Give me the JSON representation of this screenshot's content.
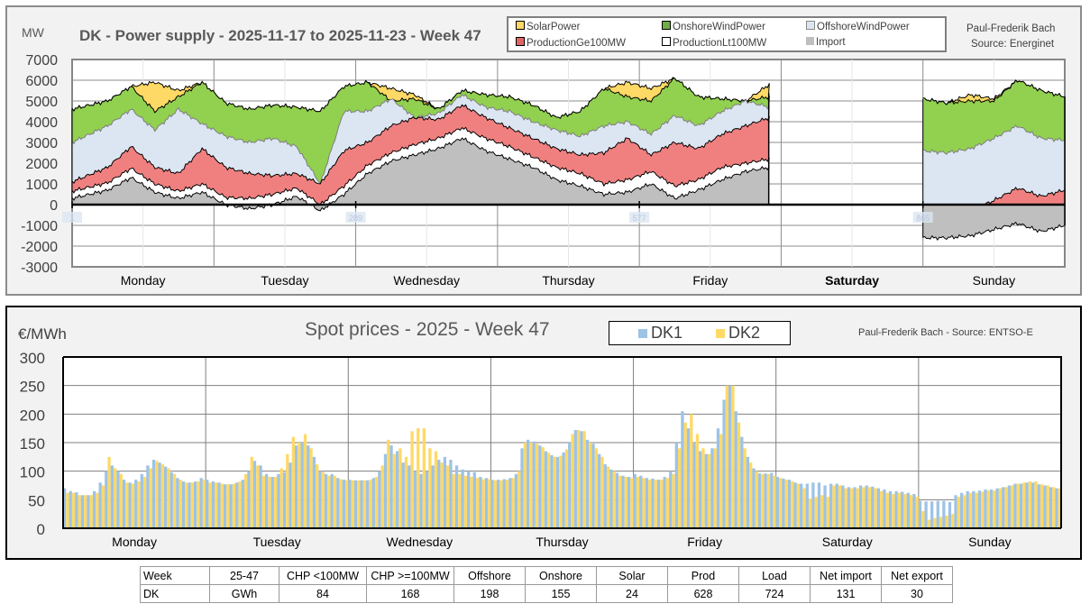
{
  "chart_data": [
    {
      "type": "area",
      "title": "DK - Power supply - 2025-11-17 to 2025-11-23 - Week 47",
      "ylabel": "MW",
      "credit": [
        "Paul-Frederik Bach",
        "Source: Energinet"
      ],
      "ylim": [
        -3000,
        7000
      ],
      "yticks": [
        7000,
        6000,
        5000,
        4000,
        3000,
        2000,
        1000,
        0,
        -1000,
        -2000,
        -3000
      ],
      "xlim": [
        1,
        2016
      ],
      "days": [
        "Monday",
        "Tuesday",
        "Wednesday",
        "Thursday",
        "Friday",
        "Saturday",
        "Sunday"
      ],
      "index_labels": [
        "1",
        "289",
        "577",
        "865",
        "1153",
        "1441",
        "1729"
      ],
      "grid": true,
      "legend_position": "top",
      "legend": [
        "SolarPower",
        "OnshoreWindPower",
        "OffshoreWindPower",
        "ProductionGe100MW",
        "ProductionLt100MW",
        "Import"
      ],
      "colors": {
        "SolarPower": "#ffd966",
        "OnshoreWindPower": "#92d050",
        "OffshoreWindPower": "#dce6f2",
        "ProductionGe100MW": "#f08080",
        "ProductionLt100MW": "#ffffff",
        "Import": "#bfbfbf"
      },
      "x_hours": [
        0,
        6,
        10,
        14,
        18,
        22,
        26,
        30,
        34,
        38,
        42,
        46,
        50,
        54,
        58,
        62,
        66,
        70,
        74,
        78,
        82,
        86,
        90,
        94,
        98,
        102,
        106,
        110,
        114,
        118,
        122,
        126,
        130,
        134,
        138,
        142,
        146,
        150,
        154,
        158,
        162,
        166,
        168,
        144,
        148,
        152,
        156,
        160,
        164,
        168
      ],
      "series_note": "Stacked boundaries in MW. Data gap from Friday ~21:00 through Saturday; Sunday resumes.",
      "segments": [
        {
          "name": "Mon-Fri",
          "hours": [
            0,
            6,
            10,
            14,
            18,
            22,
            26,
            30,
            34,
            38,
            42,
            46,
            50,
            54,
            58,
            62,
            66,
            70,
            74,
            78,
            82,
            86,
            90,
            94,
            98,
            102,
            106,
            110,
            114,
            118,
            117.9
          ],
          "import": [
            300,
            700,
            1300,
            600,
            300,
            600,
            0,
            -200,
            0,
            400,
            -300,
            500,
            1500,
            2100,
            2400,
            2700,
            3200,
            2600,
            2200,
            1800,
            1200,
            900,
            500,
            600,
            1000,
            300,
            700,
            1200,
            1600,
            1800,
            1800
          ],
          "lt100": [
            650,
            1050,
            1750,
            1000,
            650,
            1000,
            350,
            300,
            500,
            800,
            0,
            900,
            1900,
            2500,
            2900,
            3200,
            3700,
            3200,
            2800,
            2300,
            1800,
            1500,
            1000,
            1200,
            1600,
            900,
            1200,
            1800,
            2000,
            2200,
            2100
          ],
          "ge100": [
            1100,
            1800,
            2800,
            1800,
            1500,
            2700,
            1800,
            1500,
            1400,
            1500,
            1000,
            2600,
            3000,
            3800,
            4200,
            4100,
            4800,
            4200,
            3700,
            3200,
            2700,
            2400,
            2500,
            3200,
            2400,
            3000,
            2700,
            3400,
            3800,
            4200,
            4000
          ],
          "offshore": [
            3000,
            3800,
            4600,
            3600,
            4600,
            3900,
            3300,
            3000,
            3200,
            2800,
            1000,
            4500,
            4500,
            5100,
            4200,
            4400,
            5300,
            4700,
            4500,
            4000,
            3600,
            3300,
            3800,
            4000,
            3400,
            4300,
            3800,
            4500,
            5000,
            4700,
            4600
          ],
          "onshore": [
            4600,
            5000,
            5700,
            4500,
            5200,
            5900,
            4900,
            4600,
            4800,
            4700,
            4500,
            5700,
            5900,
            5000,
            5100,
            4600,
            5500,
            5300,
            5200,
            4800,
            4200,
            4500,
            5600,
            5200,
            5000,
            6100,
            5200,
            5100,
            5000,
            5200,
            4500
          ],
          "solar": [
            4600,
            5000,
            5700,
            5900,
            5500,
            5900,
            4900,
            4600,
            4800,
            4700,
            4500,
            5700,
            5900,
            5600,
            5300,
            4600,
            5500,
            5300,
            5200,
            4800,
            4200,
            4500,
            5600,
            5900,
            5600,
            6100,
            5200,
            5100,
            5000,
            5800,
            5400
          ]
        },
        {
          "name": "Sun",
          "hours": [
            144,
            148,
            152,
            156,
            160,
            164,
            168
          ],
          "import": [
            -1600,
            -1600,
            -1500,
            -1200,
            -900,
            -1300,
            -1000
          ],
          "lt100": [
            -1200,
            -1200,
            -1100,
            -900,
            -400,
            -1000,
            -600
          ],
          "ge100": [
            -500,
            -600,
            -300,
            200,
            800,
            400,
            700
          ],
          "offshore": [
            2600,
            2500,
            2700,
            3200,
            3800,
            3200,
            3100
          ],
          "onshore": [
            5100,
            4900,
            5000,
            5000,
            6000,
            5500,
            5200
          ],
          "solar": [
            5100,
            4900,
            5300,
            5100,
            6000,
            5500,
            5200
          ]
        }
      ]
    },
    {
      "type": "bar",
      "title": "Spot prices - 2025 - Week 47",
      "ylabel": "€/MWh",
      "credit": "Paul-Frederik Bach - Source: ENTSO-E",
      "ylim": [
        0,
        300
      ],
      "yticks": [
        300,
        250,
        200,
        150,
        100,
        50,
        0
      ],
      "grid": true,
      "legend_position": "top-center",
      "legend": [
        "DK1",
        "DK2"
      ],
      "colors": {
        "DK1": "#9dc3e6",
        "DK2": "#ffd966"
      },
      "categories": [
        "Monday",
        "Tuesday",
        "Wednesday",
        "Thursday",
        "Friday",
        "Saturday",
        "Sunday"
      ],
      "series": [
        {
          "name": "DK1",
          "values": [
            70,
            65,
            63,
            58,
            58,
            65,
            80,
            100,
            110,
            100,
            85,
            80,
            85,
            95,
            110,
            120,
            115,
            108,
            98,
            88,
            82,
            80,
            82,
            88,
            85,
            82,
            80,
            77,
            77,
            80,
            85,
            100,
            118,
            110,
            95,
            90,
            95,
            98,
            115,
            145,
            150,
            145,
            125,
            100,
            95,
            95,
            88,
            85,
            85,
            84,
            84,
            84,
            88,
            100,
            130,
            145,
            135,
            115,
            110,
            100,
            95,
            100,
            110,
            120,
            125,
            120,
            110,
            103,
            100,
            98,
            90,
            88,
            85,
            85,
            86,
            88,
            95,
            140,
            155,
            152,
            145,
            135,
            128,
            125,
            133,
            150,
            172,
            170,
            155,
            148,
            130,
            112,
            103,
            97,
            92,
            90,
            95,
            92,
            88,
            87,
            85,
            90,
            100,
            150,
            205,
            175,
            150,
            135,
            130,
            140,
            175,
            225,
            250,
            205,
            160,
            125,
            105,
            96,
            96,
            97,
            90,
            87,
            85,
            80,
            78,
            78,
            80,
            80,
            75,
            78,
            78,
            75,
            72,
            72,
            75,
            75,
            73,
            70,
            68,
            65,
            65,
            64,
            62,
            60,
            48,
            47,
            47,
            48,
            48,
            46,
            58,
            62,
            65,
            65,
            66,
            68,
            68,
            70,
            72,
            75,
            78,
            78,
            80,
            80,
            77,
            75,
            72,
            70
          ]
        },
        {
          "name": "DK2",
          "values": [
            62,
            62,
            58,
            58,
            58,
            62,
            75,
            125,
            105,
            95,
            80,
            78,
            82,
            90,
            105,
            118,
            112,
            105,
            95,
            85,
            80,
            80,
            82,
            85,
            80,
            80,
            78,
            77,
            78,
            82,
            95,
            125,
            110,
            92,
            90,
            90,
            105,
            130,
            160,
            150,
            165,
            140,
            112,
            98,
            92,
            92,
            86,
            84,
            84,
            84,
            84,
            85,
            90,
            110,
            155,
            130,
            140,
            125,
            170,
            175,
            175,
            140,
            135,
            115,
            110,
            95,
            95,
            92,
            90,
            88,
            86,
            86,
            84,
            84,
            85,
            88,
            100,
            150,
            150,
            148,
            142,
            132,
            125,
            127,
            138,
            165,
            172,
            170,
            150,
            140,
            125,
            108,
            100,
            92,
            90,
            88,
            90,
            88,
            85,
            85,
            85,
            88,
            95,
            140,
            185,
            200,
            165,
            140,
            130,
            140,
            165,
            250,
            250,
            185,
            140,
            115,
            100,
            95,
            95,
            92,
            88,
            85,
            82,
            78,
            70,
            52,
            55,
            58,
            55,
            75,
            75,
            70,
            70,
            70,
            72,
            72,
            70,
            65,
            62,
            60,
            62,
            60,
            58,
            55,
            30,
            15,
            18,
            20,
            22,
            25,
            55,
            58,
            62,
            62,
            64,
            66,
            66,
            70,
            72,
            75,
            78,
            80,
            82,
            82,
            77,
            75,
            72,
            70
          ]
        }
      ]
    }
  ],
  "chart1": {
    "title": "DK - Power supply - 2025-11-17 to 2025-11-23 - Week 47",
    "unit": "MW",
    "credit1": "Paul-Frederik Bach",
    "credit2": "Source: Energinet",
    "legend": [
      "SolarPower",
      "OnshoreWindPower",
      "OffshoreWindPower",
      "ProductionGe100MW",
      "ProductionLt100MW",
      "Import"
    ]
  },
  "chart2": {
    "title": "Spot prices - 2025 - Week 47",
    "unit": "€/MWh",
    "credit": "Paul-Frederik Bach - Source: ENTSO-E",
    "legend": [
      "DK1",
      "DK2"
    ]
  },
  "table": {
    "rows": [
      [
        "Week",
        "25-47",
        "CHP <100MW",
        "CHP >=100MW",
        "Offshore",
        "Onshore",
        "Solar",
        "Prod",
        "Load",
        "Net import",
        "Net export"
      ],
      [
        "DK",
        "GWh",
        "84",
        "168",
        "198",
        "155",
        "24",
        "628",
        "724",
        "131",
        "30"
      ]
    ]
  }
}
